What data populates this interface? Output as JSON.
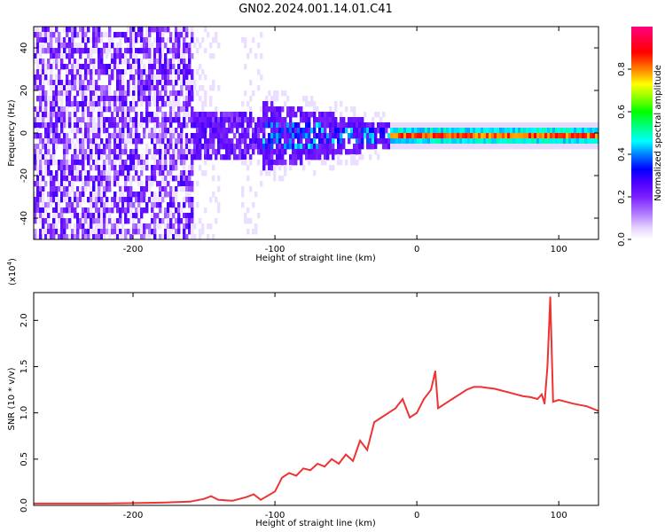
{
  "figure": {
    "title": "GN02.2024.001.14.01.C41"
  },
  "chart_data": [
    {
      "type": "heatmap",
      "xlabel": "Height of straight line (km)",
      "ylabel": "Frequency (Hz)",
      "xlim": [
        -270,
        128
      ],
      "ylim": [
        -50,
        50
      ],
      "xticks": [
        -200,
        -100,
        0,
        100
      ],
      "yticks": [
        -40,
        -20,
        0,
        20,
        40
      ],
      "colorbar": {
        "label": "Normalized spectral amplitude",
        "range": [
          0.0,
          1.0
        ],
        "ticks": [
          0.0,
          0.2,
          0.4,
          0.6,
          0.8
        ],
        "colormap": [
          "#ffffff",
          "#e8d8ff",
          "#b27dff",
          "#7a1fff",
          "#4b00ff",
          "#0000ff",
          "#0080ff",
          "#00ffff",
          "#00ff80",
          "#00ff00",
          "#80ff00",
          "#ffff00",
          "#ff8000",
          "#ff0000",
          "#ff0080"
        ]
      },
      "regions": [
        {
          "x": [
            -270,
            -158
          ],
          "description_level": 0.15
        },
        {
          "x": [
            -158,
            -110
          ],
          "description_level": 0.25
        },
        {
          "x": [
            -110,
            -20
          ],
          "description_level": 0.45
        },
        {
          "x": [
            -20,
            128
          ],
          "description_level": 0.9
        }
      ]
    },
    {
      "type": "line",
      "xlabel": "Height of straight line (km)",
      "ylabel": "SNR (10 * v/v)",
      "multiplier": "(x10",
      "multiplier_exp": "4",
      "multiplier_close": ")",
      "xlim": [
        -270,
        128
      ],
      "ylim": [
        0,
        2.3
      ],
      "xticks": [
        -200,
        -100,
        0,
        100
      ],
      "yticks": [
        0.0,
        0.5,
        1.0,
        1.5,
        2.0
      ],
      "series": [
        {
          "color": "#ee3333",
          "x": [
            -270,
            -220,
            -180,
            -160,
            -150,
            -145,
            -140,
            -130,
            -120,
            -115,
            -110,
            -100,
            -95,
            -90,
            -85,
            -80,
            -75,
            -70,
            -65,
            -60,
            -55,
            -50,
            -45,
            -40,
            -35,
            -30,
            -25,
            -20,
            -15,
            -10,
            -5,
            0,
            5,
            10,
            13,
            15,
            20,
            25,
            30,
            35,
            40,
            45,
            50,
            55,
            60,
            65,
            70,
            75,
            80,
            85,
            88,
            90,
            92,
            94,
            96,
            100,
            110,
            120,
            128
          ],
          "y": [
            0.02,
            0.02,
            0.03,
            0.04,
            0.07,
            0.1,
            0.06,
            0.05,
            0.09,
            0.12,
            0.06,
            0.15,
            0.3,
            0.35,
            0.32,
            0.4,
            0.38,
            0.45,
            0.42,
            0.5,
            0.45,
            0.55,
            0.48,
            0.7,
            0.6,
            0.9,
            0.95,
            1.0,
            1.05,
            1.15,
            0.95,
            1.0,
            1.15,
            1.25,
            1.45,
            1.05,
            1.1,
            1.15,
            1.2,
            1.25,
            1.28,
            1.28,
            1.27,
            1.26,
            1.24,
            1.22,
            1.2,
            1.18,
            1.17,
            1.15,
            1.2,
            1.1,
            1.5,
            2.25,
            1.12,
            1.14,
            1.1,
            1.07,
            1.02
          ]
        }
      ]
    }
  ]
}
